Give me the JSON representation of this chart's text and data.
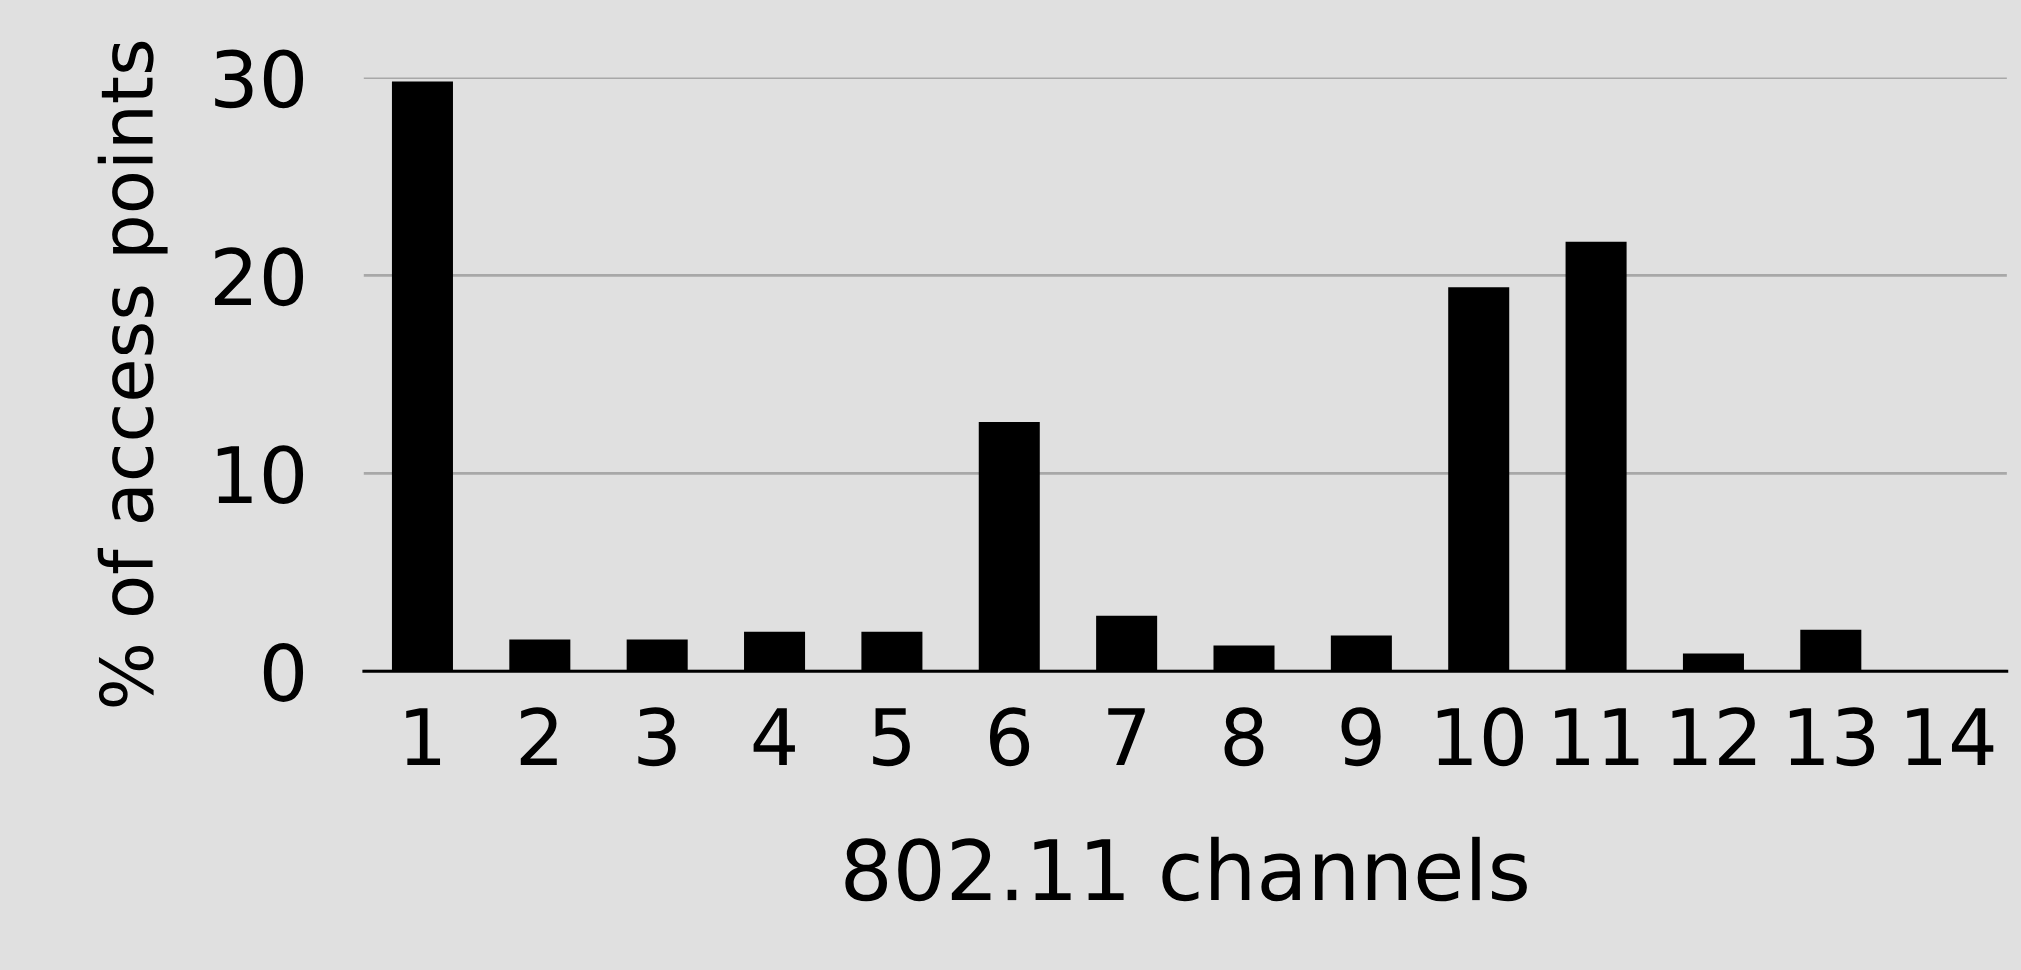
{
  "chart_data": {
    "type": "bar",
    "xlabel": "802.11 channels",
    "ylabel": "% of access points",
    "categories": [
      "1",
      "2",
      "3",
      "4",
      "5",
      "6",
      "7",
      "8",
      "9",
      "10",
      "11",
      "12",
      "13",
      "14"
    ],
    "values": [
      29.8,
      1.6,
      1.6,
      2.0,
      2.0,
      12.6,
      2.8,
      1.3,
      1.8,
      19.4,
      21.7,
      0.9,
      2.1,
      0
    ],
    "color": "#000000",
    "ylim": [
      0,
      30
    ],
    "yticks": [
      0,
      10,
      20,
      30
    ],
    "grid": "y",
    "legend": false
  }
}
